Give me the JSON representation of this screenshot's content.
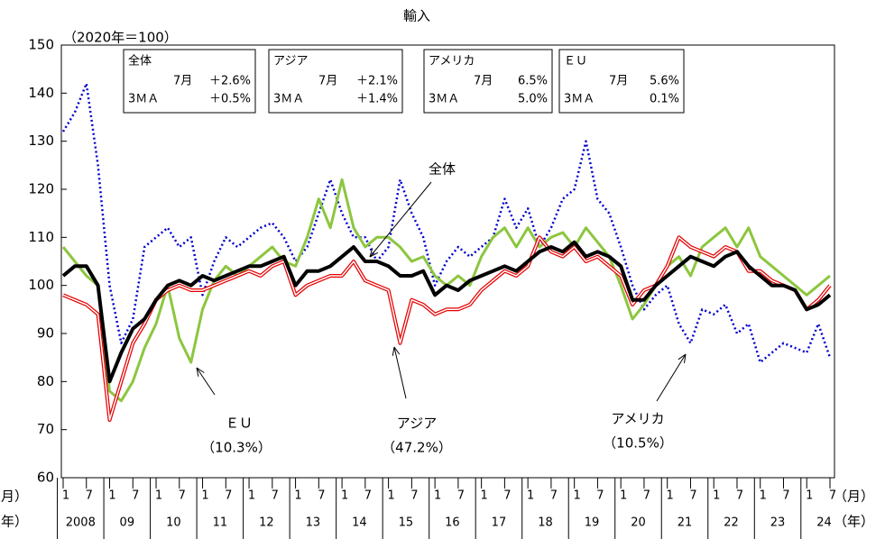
{
  "chart_data": {
    "type": "line",
    "title": "輸入",
    "ylabel": "（2020年＝100）",
    "x_unit_month": "（月）",
    "x_unit_year": "（年）",
    "x": [
      0,
      3,
      6,
      9,
      12,
      15,
      18,
      21,
      24,
      27,
      30,
      33,
      36,
      39,
      42,
      45,
      48,
      51,
      54,
      57,
      60,
      63,
      66,
      69,
      72,
      75,
      78,
      81,
      84,
      87,
      90,
      93,
      96,
      99,
      102,
      105,
      108,
      111,
      114,
      117,
      120,
      123,
      126,
      129,
      132,
      135,
      138,
      141,
      144,
      147,
      150,
      153,
      156,
      159,
      162,
      165,
      168,
      171,
      174,
      177,
      180,
      183,
      186,
      189,
      192,
      195,
      198
    ],
    "xlim": [
      0,
      198
    ],
    "xticks": [
      {
        "value": 0,
        "label": "1"
      },
      {
        "value": 6,
        "label": "7"
      },
      {
        "value": 12,
        "label": "1"
      },
      {
        "value": 18,
        "label": "7"
      },
      {
        "value": 24,
        "label": "1"
      },
      {
        "value": 30,
        "label": "7"
      },
      {
        "value": 36,
        "label": "1"
      },
      {
        "value": 42,
        "label": "7"
      },
      {
        "value": 48,
        "label": "1"
      },
      {
        "value": 54,
        "label": "7"
      },
      {
        "value": 60,
        "label": "1"
      },
      {
        "value": 66,
        "label": "7"
      },
      {
        "value": 72,
        "label": "1"
      },
      {
        "value": 78,
        "label": "7"
      },
      {
        "value": 84,
        "label": "1"
      },
      {
        "value": 90,
        "label": "7"
      },
      {
        "value": 96,
        "label": "1"
      },
      {
        "value": 102,
        "label": "7"
      },
      {
        "value": 108,
        "label": "1"
      },
      {
        "value": 114,
        "label": "7"
      },
      {
        "value": 120,
        "label": "1"
      },
      {
        "value": 126,
        "label": "7"
      },
      {
        "value": 132,
        "label": "1"
      },
      {
        "value": 138,
        "label": "7"
      },
      {
        "value": 144,
        "label": "1"
      },
      {
        "value": 150,
        "label": "7"
      },
      {
        "value": 156,
        "label": "1"
      },
      {
        "value": 162,
        "label": "7"
      },
      {
        "value": 168,
        "label": "1"
      },
      {
        "value": 174,
        "label": "7"
      },
      {
        "value": 180,
        "label": "1"
      },
      {
        "value": 186,
        "label": "7"
      },
      {
        "value": 192,
        "label": "1"
      },
      {
        "value": 198,
        "label": "7"
      }
    ],
    "years": [
      "2008",
      "09",
      "10",
      "11",
      "12",
      "13",
      "14",
      "15",
      "16",
      "17",
      "18",
      "19",
      "20",
      "21",
      "22",
      "23",
      "24"
    ],
    "ylim": [
      60,
      150
    ],
    "yticks": [
      60,
      70,
      80,
      90,
      100,
      110,
      120,
      130,
      140,
      150
    ],
    "series": [
      {
        "name": "アメリカ",
        "color": "#0000cc",
        "style": "dotted",
        "values": [
          132,
          136,
          142,
          125,
          100,
          88,
          93,
          108,
          110,
          112,
          108,
          110,
          98,
          105,
          110,
          108,
          110,
          112,
          113,
          110,
          105,
          108,
          115,
          122,
          115,
          110,
          110,
          105,
          108,
          122,
          115,
          110,
          100,
          105,
          108,
          106,
          108,
          110,
          118,
          112,
          116,
          108,
          112,
          118,
          120,
          130,
          118,
          115,
          108,
          100,
          95,
          98,
          100,
          92,
          88,
          95,
          94,
          96,
          90,
          92,
          84,
          86,
          88,
          87,
          86,
          92,
          85
        ]
      },
      {
        "name": "ＥＵ",
        "color": "#8cc63f",
        "style": "solid",
        "values": [
          108,
          105,
          102,
          100,
          78,
          76,
          80,
          87,
          92,
          100,
          89,
          84,
          95,
          101,
          104,
          102,
          104,
          106,
          108,
          105,
          104,
          110,
          118,
          112,
          122,
          112,
          108,
          110,
          110,
          108,
          105,
          106,
          102,
          100,
          102,
          100,
          106,
          110,
          112,
          108,
          112,
          108,
          110,
          111,
          108,
          112,
          109,
          106,
          100,
          93,
          96,
          100,
          104,
          106,
          102,
          108,
          110,
          112,
          108,
          112,
          106,
          104,
          102,
          100,
          98,
          100,
          102
        ]
      },
      {
        "name": "アジア",
        "color": "#e60000",
        "style": "double",
        "values": [
          98,
          97,
          96,
          94,
          72,
          80,
          88,
          92,
          97,
          99,
          100,
          99,
          99,
          100,
          101,
          102,
          103,
          102,
          104,
          105,
          98,
          100,
          101,
          102,
          102,
          105,
          101,
          100,
          99,
          88,
          97,
          96,
          94,
          95,
          95,
          96,
          99,
          101,
          103,
          102,
          104,
          110,
          107,
          106,
          108,
          105,
          106,
          104,
          102,
          96,
          99,
          100,
          104,
          110,
          108,
          107,
          106,
          108,
          107,
          103,
          103,
          101,
          100,
          99,
          95,
          97,
          100
        ]
      },
      {
        "name": "全体",
        "color": "#000000",
        "style": "thick",
        "values": [
          102,
          104,
          104,
          100,
          80,
          86,
          91,
          93,
          97,
          100,
          101,
          100,
          102,
          101,
          102,
          103,
          104,
          104,
          105,
          106,
          100,
          103,
          103,
          104,
          106,
          108,
          105,
          105,
          104,
          102,
          102,
          103,
          98,
          100,
          99,
          101,
          102,
          103,
          104,
          103,
          105,
          107,
          108,
          107,
          109,
          106,
          107,
          106,
          104,
          97,
          97,
          100,
          102,
          104,
          106,
          105,
          104,
          106,
          107,
          104,
          102,
          100,
          100,
          99,
          95,
          96,
          98
        ]
      }
    ],
    "callouts": [
      "（10.3%）",
      "（10.5%）",
      "（47.2%）"
    ],
    "info_boxes": [
      {
        "rows": [
          [
            "7月",
            "＋2.6%"
          ],
          [
            "3ＭＡ",
            "＋0.5%"
          ]
        ]
      },
      {
        "rows": [
          [
            "7月",
            "＋2.1%"
          ],
          [
            "3ＭＡ",
            "＋1.4%"
          ]
        ]
      },
      {
        "rows": [
          [
            "7月",
            "6.5%"
          ],
          [
            "3ＭＡ",
            "5.0%"
          ]
        ]
      },
      {
        "rows": [
          [
            "7月",
            "5.6%"
          ],
          [
            "3ＭＡ",
            "0.1%"
          ]
        ]
      }
    ]
  }
}
